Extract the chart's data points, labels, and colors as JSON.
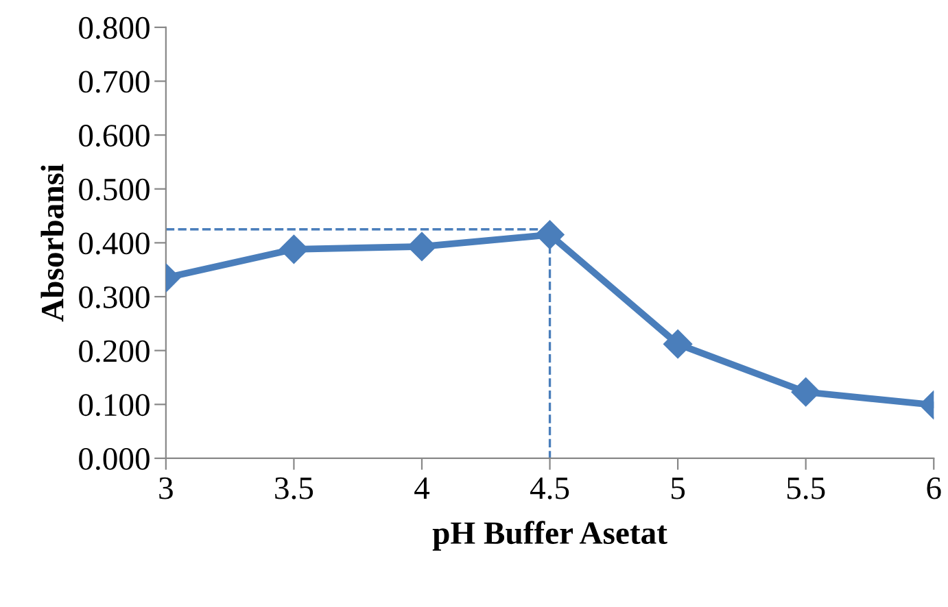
{
  "chart_data": {
    "type": "line",
    "xlabel": "pH Buffer Asetat",
    "ylabel": "Absorbansi",
    "xlim": [
      3,
      6
    ],
    "xticks": [
      3,
      3.5,
      4,
      4.5,
      5,
      5.5,
      6
    ],
    "ylim": [
      0,
      0.8
    ],
    "yticks": [
      {
        "value": 0,
        "label": "0.000"
      },
      {
        "value": 0.1,
        "label": "0.100"
      },
      {
        "value": 0.2,
        "label": "0.200"
      },
      {
        "value": 0.3,
        "label": "0.300"
      },
      {
        "value": 0.4,
        "label": "0.400"
      },
      {
        "value": 0.5,
        "label": "0.500"
      },
      {
        "value": 0.6,
        "label": "0.600"
      },
      {
        "value": 0.7,
        "label": "0.700"
      },
      {
        "value": 0.8,
        "label": "0.800"
      }
    ],
    "grid": false,
    "legend": false,
    "series": [
      {
        "x": [
          3,
          4.5,
          4.5
        ],
        "values": [
          0.425,
          0.425,
          0
        ],
        "color": "#4a7ebb",
        "line_style": "dashed",
        "marker": "none"
      },
      {
        "x": [
          3,
          3.5,
          4,
          4.5,
          5,
          5.5,
          6
        ],
        "values": [
          0.335,
          0.388,
          0.393,
          0.415,
          0.212,
          0.123,
          0.099
        ],
        "color": "#4a7ebb",
        "line_style": "solid",
        "marker": "diamond"
      }
    ]
  }
}
